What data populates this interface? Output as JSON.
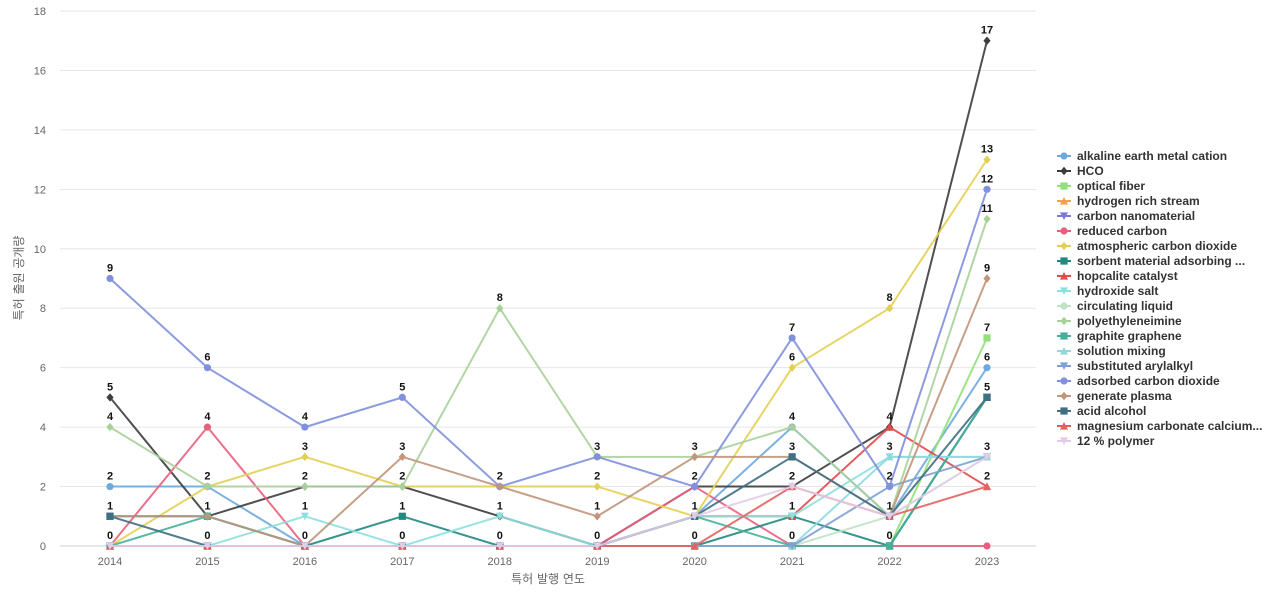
{
  "chart_data": {
    "type": "line",
    "title": "",
    "xlabel": "특허 발행 연도",
    "ylabel": "특허 출원 공개량",
    "x": [
      2014,
      2015,
      2016,
      2017,
      2018,
      2019,
      2020,
      2021,
      2022,
      2023
    ],
    "ylim": [
      0,
      18
    ],
    "yticks": [
      0,
      2,
      4,
      6,
      8,
      10,
      12,
      14,
      16,
      18
    ],
    "grid": true,
    "legend_position": "right",
    "series": [
      {
        "name": "alkaline earth metal cation",
        "color": "#6fa8dc",
        "marker": "circle",
        "values": [
          2,
          2,
          0,
          0,
          0,
          0,
          1,
          4,
          1,
          6
        ]
      },
      {
        "name": "HCO",
        "color": "#3d3d3d",
        "marker": "diamond",
        "values": [
          5,
          1,
          2,
          2,
          1,
          0,
          2,
          2,
          4,
          17
        ]
      },
      {
        "name": "optical fiber",
        "color": "#93e07a",
        "marker": "square",
        "values": [
          0,
          0,
          0,
          0,
          0,
          0,
          0,
          0,
          0,
          7
        ]
      },
      {
        "name": "hydrogen rich stream",
        "color": "#f4a24a",
        "marker": "triangle-up",
        "values": [
          0,
          0,
          0,
          0,
          0,
          0,
          0,
          0,
          0,
          5
        ]
      },
      {
        "name": "carbon nanomaterial",
        "color": "#7a7ad8",
        "marker": "triangle-down",
        "values": [
          0,
          0,
          0,
          0,
          0,
          0,
          0,
          0,
          0,
          5
        ]
      },
      {
        "name": "reduced carbon",
        "color": "#e8607e",
        "marker": "circle",
        "values": [
          0,
          4,
          0,
          0,
          0,
          0,
          2,
          0,
          0,
          0
        ]
      },
      {
        "name": "atmospheric carbon dioxide",
        "color": "#e3cf55",
        "marker": "diamond",
        "values": [
          0,
          2,
          3,
          2,
          2,
          2,
          1,
          6,
          8,
          13
        ]
      },
      {
        "name": "sorbent material adsorbing ...",
        "color": "#218a80",
        "marker": "square",
        "values": [
          1,
          1,
          0,
          1,
          0,
          0,
          0,
          1,
          0,
          5
        ]
      },
      {
        "name": "hopcalite catalyst",
        "color": "#e34a4a",
        "marker": "triangle-up",
        "values": [
          0,
          0,
          0,
          0,
          0,
          0,
          1,
          1,
          4,
          2
        ]
      },
      {
        "name": "hydroxide salt",
        "color": "#8de0de",
        "marker": "triangle-down",
        "values": [
          0,
          0,
          1,
          0,
          1,
          0,
          1,
          1,
          3,
          3
        ]
      },
      {
        "name": "circulating liquid",
        "color": "#bfe3c8",
        "marker": "circle",
        "values": [
          0,
          0,
          0,
          0,
          0,
          0,
          0,
          0,
          1,
          3
        ]
      },
      {
        "name": "polyethyleneimine",
        "color": "#a8d19a",
        "marker": "diamond",
        "values": [
          4,
          2,
          2,
          2,
          8,
          3,
          3,
          4,
          1,
          11
        ]
      },
      {
        "name": "graphite graphene",
        "color": "#46b09a",
        "marker": "square",
        "values": [
          0,
          1,
          0,
          0,
          0,
          0,
          1,
          0,
          0,
          5
        ]
      },
      {
        "name": "solution mixing",
        "color": "#8fd8e0",
        "marker": "triangle-up",
        "values": [
          0,
          0,
          0,
          0,
          0,
          0,
          0,
          0,
          3,
          3
        ]
      },
      {
        "name": "substituted arylalkyl",
        "color": "#7fa0d0",
        "marker": "triangle-down",
        "values": [
          0,
          0,
          0,
          0,
          0,
          0,
          0,
          0,
          2,
          3
        ]
      },
      {
        "name": "adsorbed carbon dioxide",
        "color": "#8090dc",
        "marker": "circle",
        "values": [
          9,
          6,
          4,
          5,
          2,
          3,
          2,
          7,
          2,
          12
        ]
      },
      {
        "name": "generate plasma",
        "color": "#c0957a",
        "marker": "diamond",
        "values": [
          1,
          1,
          0,
          3,
          2,
          1,
          3,
          3,
          1,
          9
        ]
      },
      {
        "name": "acid alcohol",
        "color": "#3e6f82",
        "marker": "square",
        "values": [
          1,
          0,
          0,
          0,
          0,
          0,
          1,
          3,
          1,
          5
        ]
      },
      {
        "name": "magnesium carbonate calcium...",
        "color": "#e66060",
        "marker": "triangle-up",
        "values": [
          0,
          0,
          0,
          0,
          0,
          0,
          0,
          2,
          1,
          2
        ]
      },
      {
        "name": "12 % polymer",
        "color": "#e0cce8",
        "marker": "triangle-down",
        "values": [
          0,
          0,
          0,
          0,
          0,
          0,
          1,
          2,
          1,
          3
        ]
      }
    ],
    "data_labels": [
      {
        "x": 2014,
        "y": 9,
        "text": "9"
      },
      {
        "x": 2014,
        "y": 5,
        "text": "5"
      },
      {
        "x": 2014,
        "y": 4,
        "text": "4"
      },
      {
        "x": 2014,
        "y": 2,
        "text": "2"
      },
      {
        "x": 2014,
        "y": 1,
        "text": "1"
      },
      {
        "x": 2014,
        "y": 0,
        "text": "0"
      },
      {
        "x": 2015,
        "y": 6,
        "text": "6"
      },
      {
        "x": 2015,
        "y": 4,
        "text": "4"
      },
      {
        "x": 2015,
        "y": 2,
        "text": "2"
      },
      {
        "x": 2015,
        "y": 1,
        "text": "1"
      },
      {
        "x": 2015,
        "y": 0,
        "text": "0"
      },
      {
        "x": 2016,
        "y": 4,
        "text": "4"
      },
      {
        "x": 2016,
        "y": 3,
        "text": "3"
      },
      {
        "x": 2016,
        "y": 2,
        "text": "2"
      },
      {
        "x": 2016,
        "y": 1,
        "text": "1"
      },
      {
        "x": 2016,
        "y": 0,
        "text": "0"
      },
      {
        "x": 2017,
        "y": 5,
        "text": "5"
      },
      {
        "x": 2017,
        "y": 3,
        "text": "3"
      },
      {
        "x": 2017,
        "y": 2,
        "text": "2"
      },
      {
        "x": 2017,
        "y": 1,
        "text": "1"
      },
      {
        "x": 2017,
        "y": 0,
        "text": "0"
      },
      {
        "x": 2018,
        "y": 8,
        "text": "8"
      },
      {
        "x": 2018,
        "y": 2,
        "text": "2"
      },
      {
        "x": 2018,
        "y": 1,
        "text": "1"
      },
      {
        "x": 2018,
        "y": 0,
        "text": "0"
      },
      {
        "x": 2019,
        "y": 3,
        "text": "3"
      },
      {
        "x": 2019,
        "y": 2,
        "text": "2"
      },
      {
        "x": 2019,
        "y": 1,
        "text": "1"
      },
      {
        "x": 2019,
        "y": 0,
        "text": "0"
      },
      {
        "x": 2020,
        "y": 3,
        "text": "3"
      },
      {
        "x": 2020,
        "y": 2,
        "text": "2"
      },
      {
        "x": 2020,
        "y": 1,
        "text": "1"
      },
      {
        "x": 2020,
        "y": 0,
        "text": "0"
      },
      {
        "x": 2021,
        "y": 7,
        "text": "7"
      },
      {
        "x": 2021,
        "y": 6,
        "text": "6"
      },
      {
        "x": 2021,
        "y": 4,
        "text": "4"
      },
      {
        "x": 2021,
        "y": 3,
        "text": "3"
      },
      {
        "x": 2021,
        "y": 2,
        "text": "2"
      },
      {
        "x": 2021,
        "y": 1,
        "text": "1"
      },
      {
        "x": 2021,
        "y": 0,
        "text": "0"
      },
      {
        "x": 2022,
        "y": 8,
        "text": "8"
      },
      {
        "x": 2022,
        "y": 4,
        "text": "4"
      },
      {
        "x": 2022,
        "y": 3,
        "text": "3"
      },
      {
        "x": 2022,
        "y": 2,
        "text": "2"
      },
      {
        "x": 2022,
        "y": 1,
        "text": "1"
      },
      {
        "x": 2022,
        "y": 0,
        "text": "0"
      },
      {
        "x": 2023,
        "y": 17,
        "text": "17"
      },
      {
        "x": 2023,
        "y": 13,
        "text": "13"
      },
      {
        "x": 2023,
        "y": 12,
        "text": "12"
      },
      {
        "x": 2023,
        "y": 11,
        "text": "11"
      },
      {
        "x": 2023,
        "y": 9,
        "text": "9"
      },
      {
        "x": 2023,
        "y": 7,
        "text": "7"
      },
      {
        "x": 2023,
        "y": 6,
        "text": "6"
      },
      {
        "x": 2023,
        "y": 5,
        "text": "5"
      },
      {
        "x": 2023,
        "y": 3,
        "text": "3"
      },
      {
        "x": 2023,
        "y": 2,
        "text": "2"
      }
    ]
  }
}
